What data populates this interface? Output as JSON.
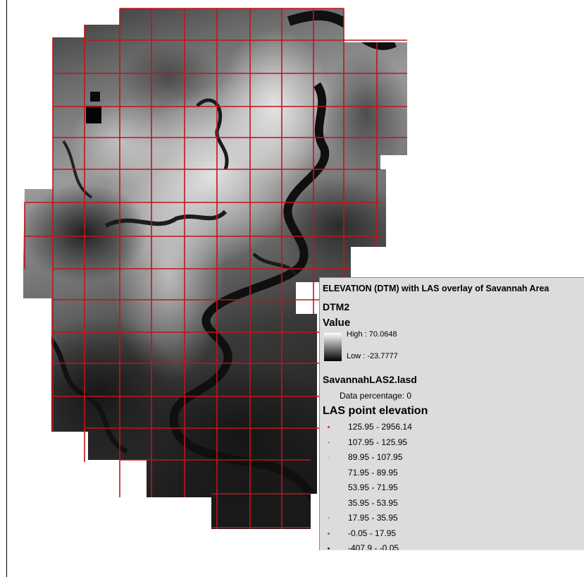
{
  "legend": {
    "title": "ELEVATION (DTM) with LAS overlay of Savannah Area",
    "layer_dtm": "DTM2",
    "value_heading": "Value",
    "high_label": "High : 70.0648",
    "low_label": "Low : -23.7777",
    "layer_las": "SavannahLAS2.lasd",
    "data_percentage": "Data percentage: 0",
    "las_heading": "LAS point elevation",
    "classes": [
      {
        "label": "125.95 - 2956.14",
        "color": "#e8262a"
      },
      {
        "label": "107.95 - 125.95",
        "color": "#f29a3c"
      },
      {
        "label": "89.95 - 107.95",
        "color": "#f5c84c"
      },
      {
        "label": "71.95 - 89.95",
        "color": "#f4ec8c"
      },
      {
        "label": "53.95 - 71.95",
        "color": "#e8ecd8"
      },
      {
        "label": "35.95 - 53.95",
        "color": "#bfe0ee"
      },
      {
        "label": "17.95 - 35.95",
        "color": "#7fbfe3"
      },
      {
        "label": "-0.05 - 17.95",
        "color": "#3e76c8"
      },
      {
        "label": "-407.9 - -0.05",
        "color": "#1a2b8e"
      }
    ]
  },
  "map": {
    "grid_color": "#c0151b",
    "colors": {
      "raster_high": "#e8e8e8",
      "raster_low": "#141414",
      "water": "#151515"
    }
  }
}
